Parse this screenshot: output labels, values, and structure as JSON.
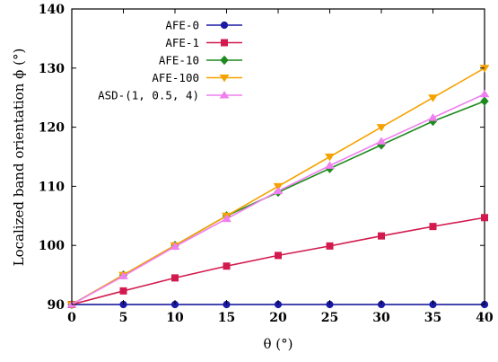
{
  "chart_data": {
    "type": "line",
    "title": "",
    "xlabel": "θ (°)",
    "ylabel": "Localized band orientation ϕ (°)",
    "xlim": [
      0,
      40
    ],
    "ylim": [
      90,
      140
    ],
    "xticks": [
      0,
      5,
      10,
      15,
      20,
      25,
      30,
      35,
      40
    ],
    "yticks": [
      90,
      100,
      110,
      120,
      130,
      140
    ],
    "grid": false,
    "legend_position": "top-left",
    "x": [
      0,
      5,
      10,
      15,
      20,
      25,
      30,
      35,
      40
    ],
    "series": [
      {
        "name": "AFE-0",
        "color": "#1a1aa6",
        "marker": "circle",
        "values": [
          90,
          90,
          90,
          90,
          90,
          90,
          90,
          90,
          90
        ]
      },
      {
        "name": "AFE-1",
        "color": "#d21a4e",
        "marker": "square",
        "values": [
          90,
          92.3,
          94.5,
          96.5,
          98.3,
          99.9,
          101.6,
          103.2,
          104.7
        ]
      },
      {
        "name": "AFE-10",
        "color": "#1f8a1f",
        "marker": "diamond",
        "values": [
          90,
          95,
          100,
          105,
          109,
          113,
          117,
          121,
          124.4
        ]
      },
      {
        "name": "AFE-100",
        "color": "#f5a200",
        "marker": "triangle-down",
        "values": [
          90,
          95,
          100,
          105,
          110,
          115,
          120,
          125,
          130
        ]
      },
      {
        "name": "ASD-(1, 0.5, 4)",
        "color": "#f07ff0",
        "marker": "triangle-up",
        "values": [
          90,
          94.8,
          99.8,
          104.5,
          109.2,
          113.5,
          117.6,
          121.6,
          125.6
        ]
      }
    ]
  }
}
